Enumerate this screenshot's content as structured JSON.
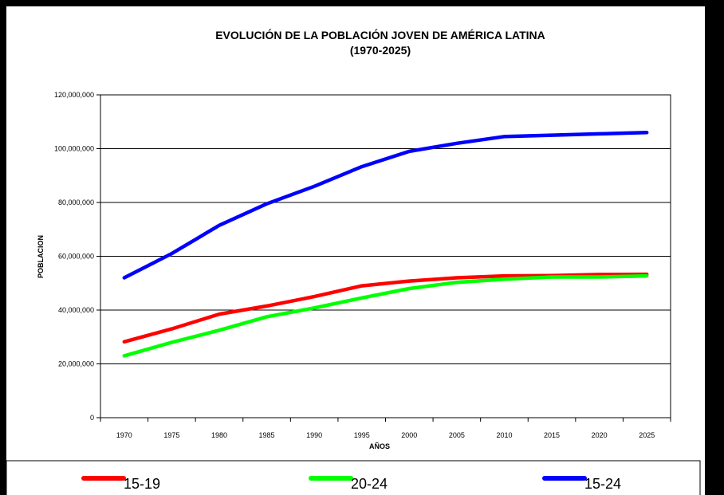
{
  "chart_data": {
    "type": "line",
    "title": "EVOLUCIÓN DE LA POBLACIÓN JOVEN DE AMÉRICA LATINA",
    "subtitle": "(1970-2025)",
    "xlabel": "AÑOS",
    "ylabel": "POBLACION",
    "x": [
      "1970",
      "1975",
      "1980",
      "1985",
      "1990",
      "1995",
      "2000",
      "2005",
      "2010",
      "2015",
      "2020",
      "2025"
    ],
    "ylim": [
      0,
      120000000
    ],
    "yticks": [
      0,
      20000000,
      40000000,
      60000000,
      80000000,
      100000000,
      120000000
    ],
    "ytick_labels": [
      "0",
      "20,000,000",
      "40,000,000",
      "60,000,000",
      "80,000,000",
      "100,000,000",
      "120,000,000"
    ],
    "grid": true,
    "legend_position": "bottom",
    "series": [
      {
        "name": "15-19",
        "color": "#ff0000",
        "values": [
          28200000,
          33000000,
          38500000,
          41500000,
          45000000,
          49000000,
          50800000,
          52000000,
          52700000,
          52800000,
          53200000,
          53300000
        ]
      },
      {
        "name": "20-24",
        "color": "#00ff00",
        "values": [
          23000000,
          28000000,
          32500000,
          37500000,
          40800000,
          44500000,
          48000000,
          50300000,
          51500000,
          52300000,
          52300000,
          52700000
        ]
      },
      {
        "name": "15-24",
        "color": "#0000ff",
        "values": [
          52000000,
          61000000,
          71500000,
          79500000,
          86000000,
          93300000,
          99000000,
          102000000,
          104500000,
          105000000,
          105500000,
          106000000
        ]
      }
    ]
  }
}
